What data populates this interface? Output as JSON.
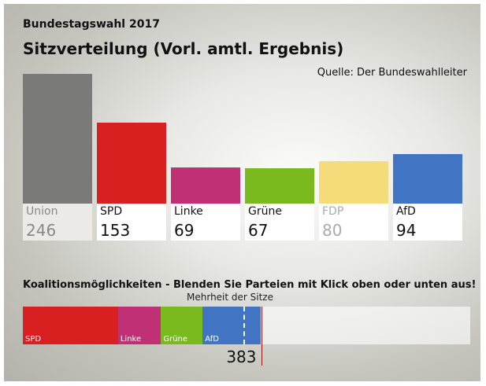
{
  "header": {
    "title": "Bundestagswahl 2017",
    "subtitle": "Sitzverteilung (Vorl. amtl. Ergebnis)",
    "source": "Quelle: Der Bundeswahlleiter"
  },
  "chart_data": {
    "type": "bar",
    "categories": [
      "Union",
      "SPD",
      "Linke",
      "Grüne",
      "FDP",
      "AfD"
    ],
    "values": [
      246,
      153,
      69,
      67,
      80,
      94
    ],
    "colors": [
      "#7a7a78",
      "#d92020",
      "#bf3075",
      "#7aba1e",
      "#f5dc7a",
      "#4175c4"
    ],
    "active": [
      false,
      true,
      true,
      true,
      false,
      true
    ]
  },
  "coalition": {
    "title": "Koalitionsmöglichkeiten - Blenden Sie Parteien mit Klick oben oder unten aus!",
    "majority_label": "Mehrheit der Sitze",
    "total_seats": 709,
    "majority": 355,
    "sum": "383",
    "segments": [
      {
        "label": "SPD",
        "value": 153,
        "color": "#d92020"
      },
      {
        "label": "Linke",
        "value": 69,
        "color": "#bf3075"
      },
      {
        "label": "Grüne",
        "value": 67,
        "color": "#7aba1e"
      },
      {
        "label": "AfD",
        "value": 94,
        "color": "#4175c4"
      }
    ]
  }
}
